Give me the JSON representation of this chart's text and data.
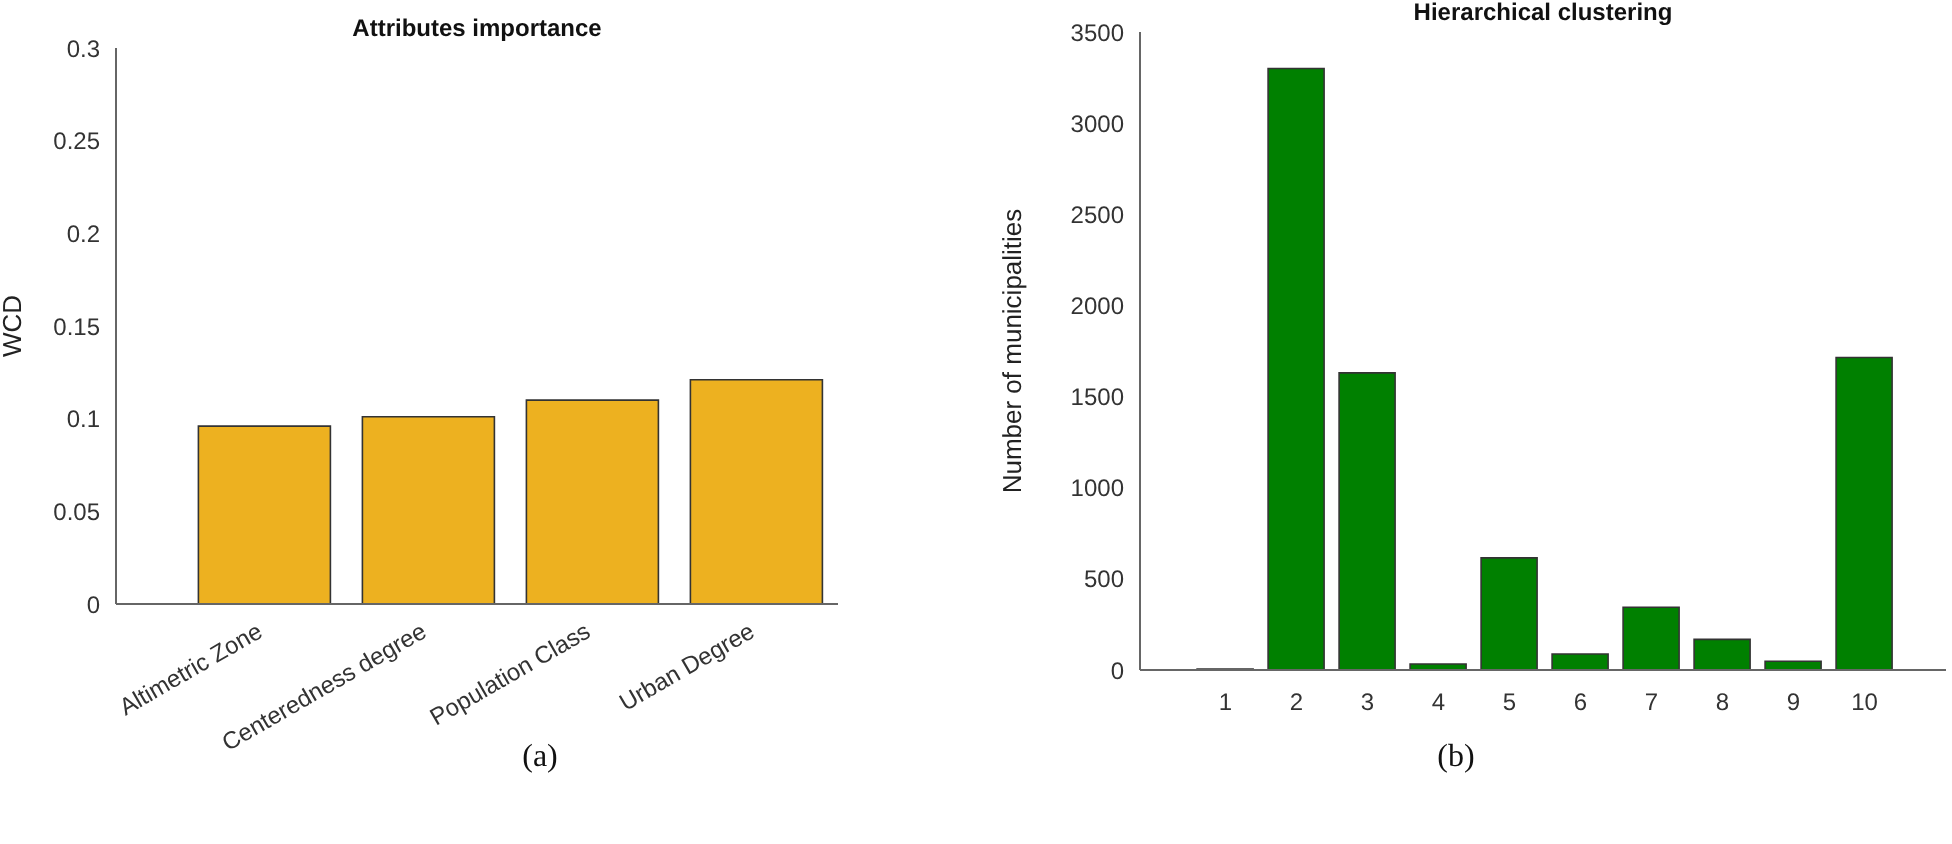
{
  "chart_data": [
    {
      "type": "bar",
      "title": "Attributes importance",
      "ylabel": "WCD",
      "categories": [
        "Altimetric Zone",
        "Centeredness degree",
        "Population Class",
        "Urban Degree"
      ],
      "values": [
        0.096,
        0.101,
        0.11,
        0.121
      ],
      "color": "#edb120",
      "ylim": [
        0,
        0.3
      ],
      "yticks": [
        0,
        0.05,
        0.1,
        0.15,
        0.2,
        0.25,
        0.3
      ],
      "annotations": [
        "(a)"
      ]
    },
    {
      "type": "bar",
      "title": "Hierarchical clustering",
      "ylabel": "Number of municipalities",
      "categories": [
        "1",
        "2",
        "3",
        "4",
        "5",
        "6",
        "7",
        "8",
        "9",
        "10"
      ],
      "values": [
        5,
        3300,
        1630,
        33,
        615,
        88,
        344,
        168,
        48,
        1714
      ],
      "color": "#008000",
      "ylim": [
        0,
        3500
      ],
      "yticks": [
        0,
        500,
        1000,
        1500,
        2000,
        2500,
        3000,
        3500
      ],
      "annotations": [
        "(b)"
      ]
    }
  ]
}
